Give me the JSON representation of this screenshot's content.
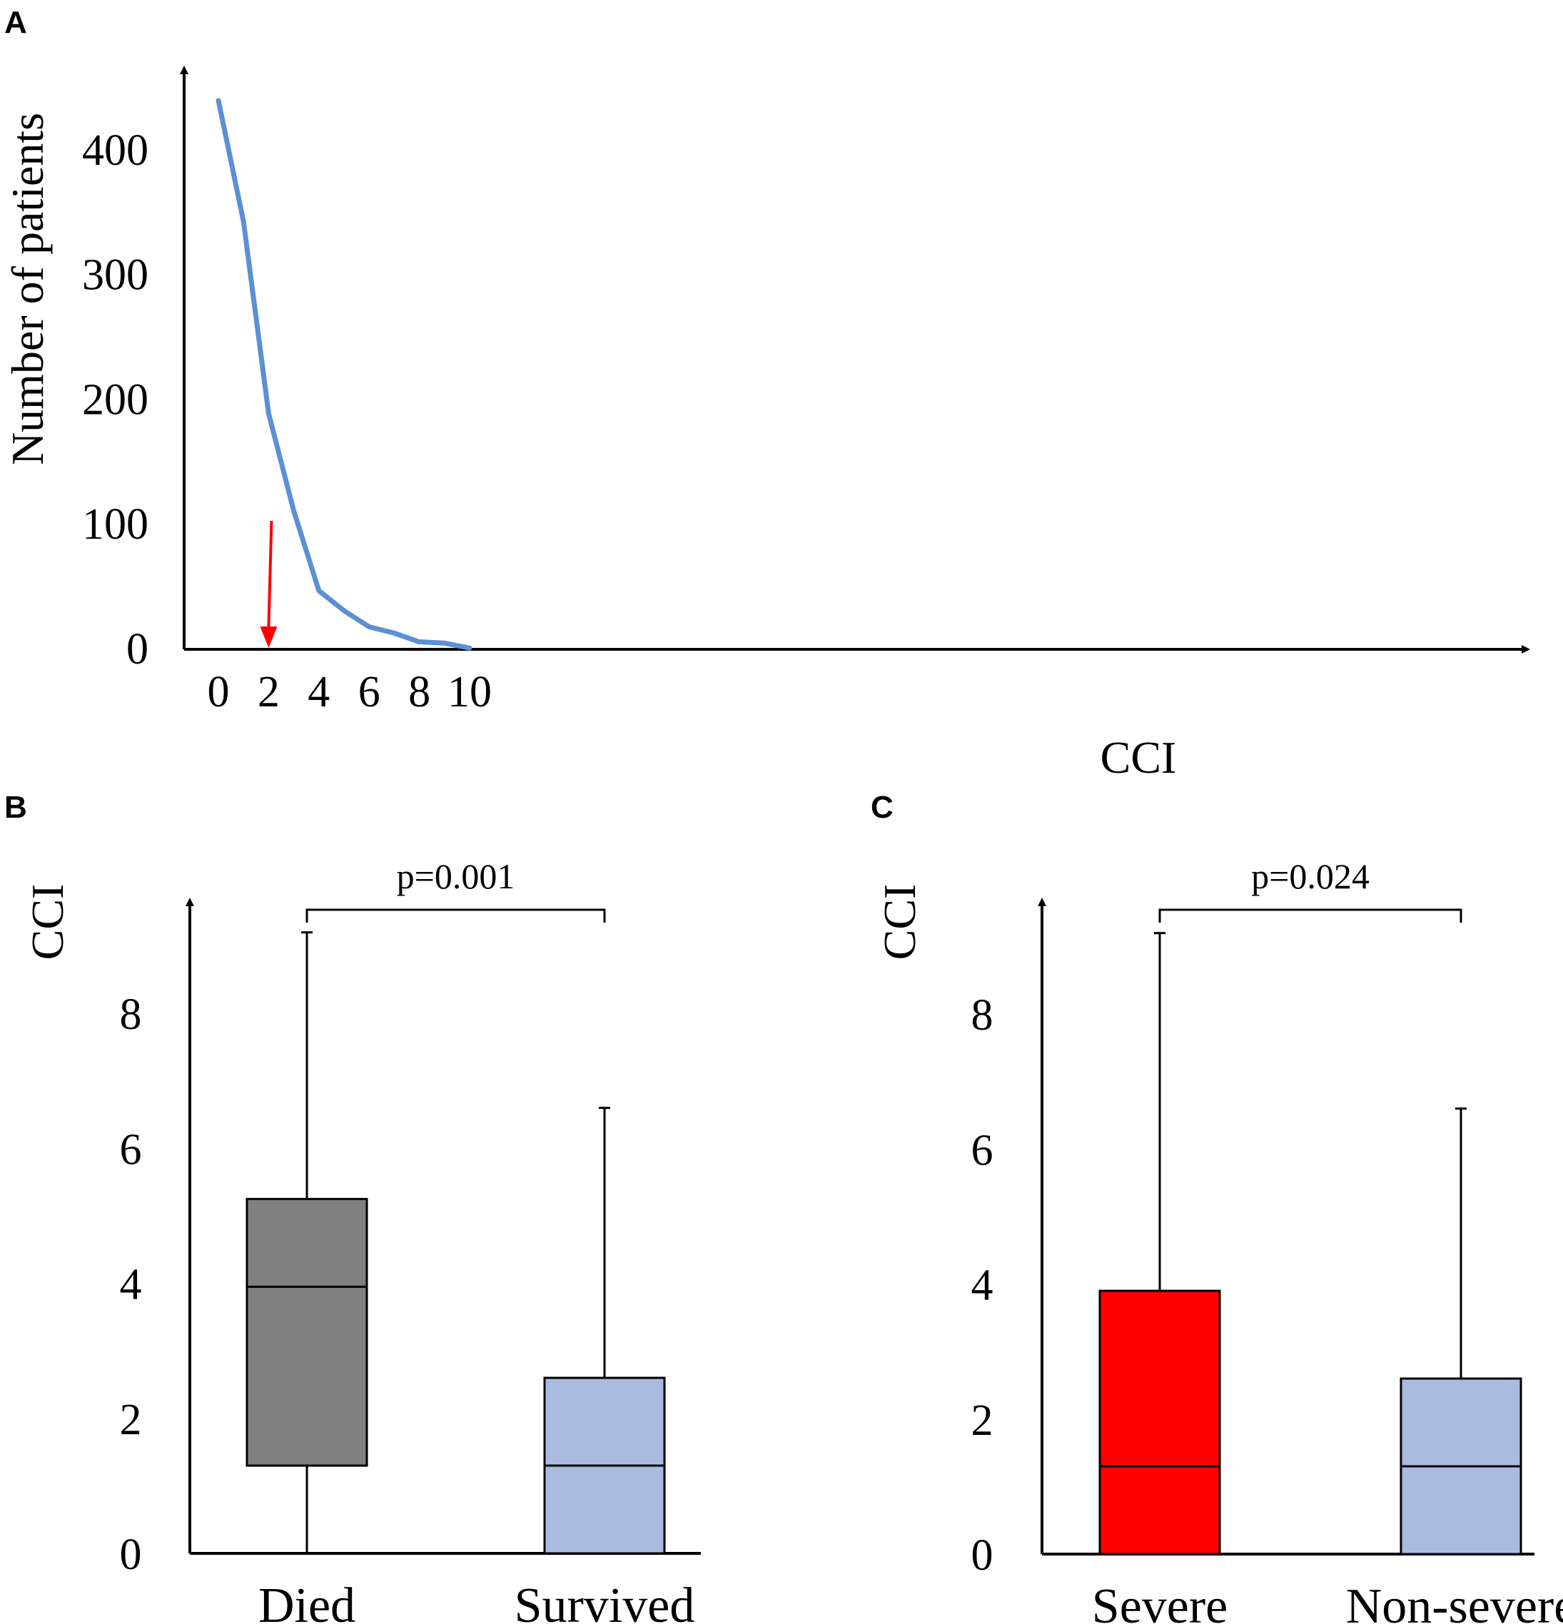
{
  "chart_data": [
    {
      "panel": "A",
      "type": "line",
      "xlabel": "CCI",
      "ylabel": "Number of patients",
      "xlim": [
        0,
        10
      ],
      "ylim": [
        0,
        440
      ],
      "xticks": [
        "0",
        "2",
        "4",
        "6",
        "8",
        "10"
      ],
      "yticks": [
        "0",
        "100",
        "200",
        "300",
        "400"
      ],
      "series": [
        {
          "name": "Number of patients",
          "color": "#5b8fd6",
          "x": [
            0,
            1,
            2,
            3,
            4,
            5,
            6,
            7,
            8,
            9,
            10
          ],
          "values": [
            440,
            343,
            189,
            111,
            47,
            31,
            18,
            13,
            6,
            5,
            1
          ]
        }
      ],
      "annotations": [
        {
          "type": "arrow",
          "x": 2,
          "color": "#ff0000"
        }
      ]
    },
    {
      "panel": "B",
      "type": "box",
      "ylabel": "CCI",
      "ylim": [
        0,
        9
      ],
      "yticks": [
        "0",
        "2",
        "4",
        "6",
        "8"
      ],
      "categories": [
        "Died",
        "Survived"
      ],
      "boxes": [
        {
          "name": "Died",
          "min": 0,
          "q1": 1.3,
          "median": 3.95,
          "q3": 5.25,
          "max": 9.2,
          "color": "#808080"
        },
        {
          "name": "Survived",
          "min": 0,
          "q1": 0,
          "median": 1.3,
          "q3": 2.6,
          "max": 6.6,
          "color": "#a9bce0"
        }
      ],
      "pvalue": "p=0.001"
    },
    {
      "panel": "C",
      "type": "box",
      "ylabel": "CCI",
      "ylim": [
        0,
        9
      ],
      "yticks": [
        "0",
        "2",
        "4",
        "6",
        "8"
      ],
      "categories": [
        "Severe",
        "Non-severe"
      ],
      "boxes": [
        {
          "name": "Severe",
          "min": 0,
          "q1": 0,
          "median": 1.3,
          "q3": 3.9,
          "max": 9.2,
          "color": "#ff0000"
        },
        {
          "name": "Non-severe",
          "min": 0,
          "q1": 0,
          "median": 1.3,
          "q3": 2.6,
          "max": 6.6,
          "color": "#a9bce0"
        }
      ],
      "pvalue": "p=0.024"
    }
  ]
}
